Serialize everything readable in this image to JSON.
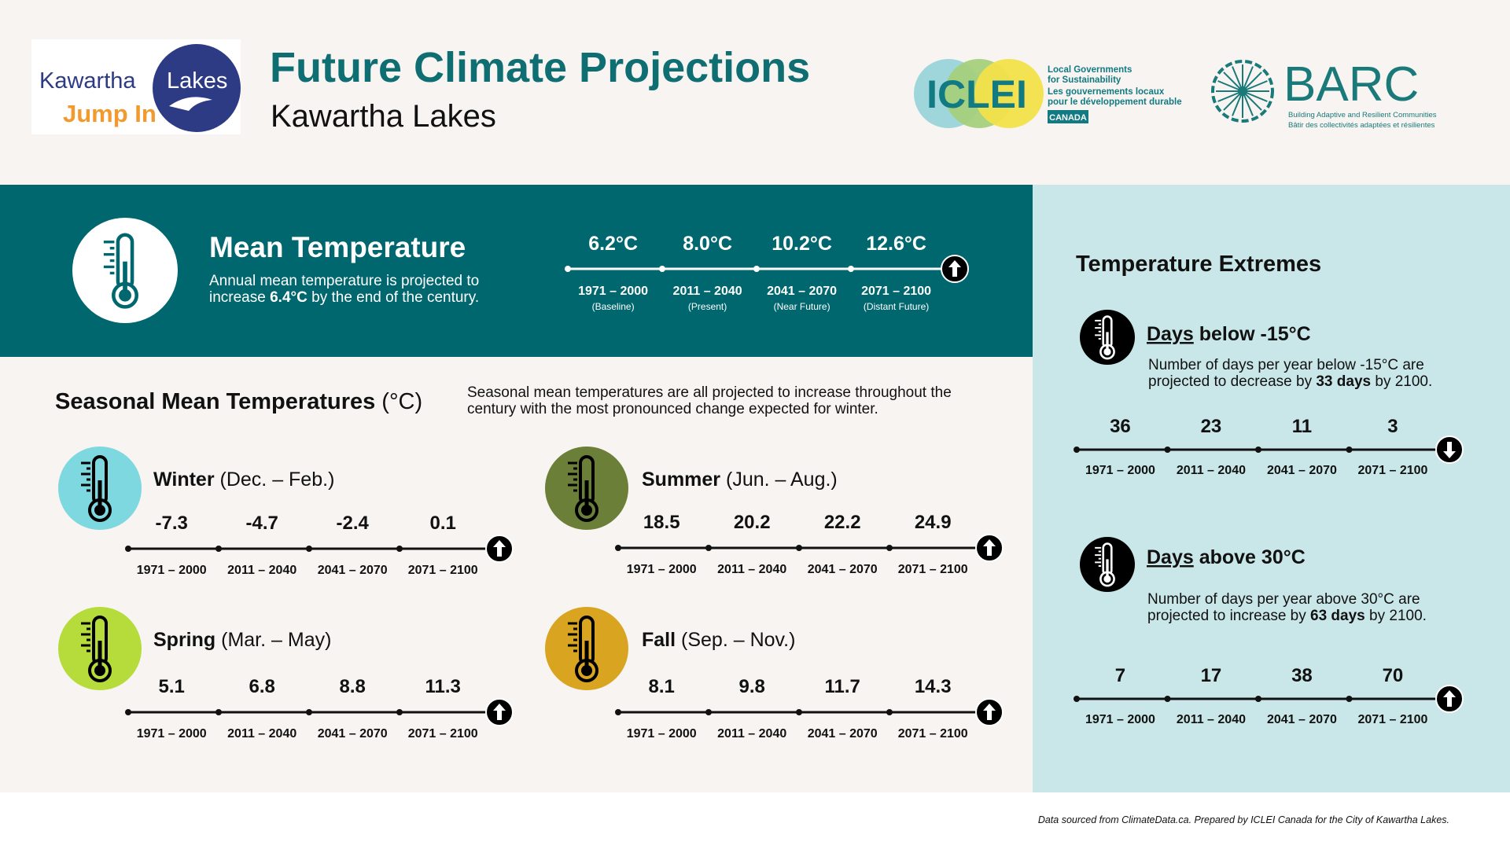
{
  "header": {
    "title": "Future Climate Projections",
    "subtitle": "Kawartha Lakes",
    "logo": {
      "word1": "Kawartha",
      "word2": "Lakes",
      "tagline": "Jump In"
    },
    "iclei": {
      "name": "ICLEI",
      "lines": [
        "Local Governments",
        "for Sustainability",
        "Les gouvernements locaux",
        "pour le développement durable"
      ],
      "country": "CANADA"
    },
    "barc": {
      "name": "BARC",
      "line_en": "Building Adaptive and Resilient Communities",
      "line_fr": "Bâtir des collectivités adaptées et résilientes"
    }
  },
  "periods": [
    "1971 – 2000",
    "2011 – 2040",
    "2041 – 2070",
    "2071 – 2100"
  ],
  "mean_temperature": {
    "title": "Mean Temperature",
    "description": [
      "Annual mean temperature is projected to increase ",
      "6.4°C",
      " by the end of the century."
    ],
    "values": [
      "6.2°C",
      "8.0°C",
      "10.2°C",
      "12.6°C"
    ],
    "notes": [
      "(Baseline)",
      "(Present)",
      "(Near Future)",
      "(Distant Future)"
    ]
  },
  "seasonal": {
    "title": "Seasonal Mean Temperatures",
    "unit": "(°C)",
    "description": "Seasonal mean temperatures are all projected to increase throughout the century with the most pronounced change expected for winter.",
    "seasons": [
      {
        "name": "Winter",
        "months": "(Dec. – Feb.)",
        "values": [
          -7.3,
          -4.7,
          -2.4,
          0.1
        ]
      },
      {
        "name": "Summer",
        "months": "(Jun. – Aug.)",
        "values": [
          18.5,
          20.2,
          22.2,
          24.9
        ]
      },
      {
        "name": "Spring",
        "months": "(Mar. – May)",
        "values": [
          5.1,
          6.8,
          8.8,
          11.3
        ]
      },
      {
        "name": "Fall",
        "months": "(Sep. – Nov.)",
        "values": [
          8.1,
          9.8,
          11.7,
          14.3
        ]
      }
    ]
  },
  "extremes": {
    "title": "Temperature Extremes",
    "items": [
      {
        "title": [
          "Days",
          " below -15°C"
        ],
        "description": [
          "Number of days per year below -15°C are projected to decrease by ",
          "33 days",
          " by 2100."
        ],
        "values": [
          36,
          23,
          11,
          3
        ]
      },
      {
        "title": [
          "Days",
          " above 30°C"
        ],
        "description": [
          "Number of days per year above 30°C are projected to increase by ",
          "63 days",
          " by 2100."
        ],
        "values": [
          7,
          17,
          38,
          70
        ]
      }
    ]
  },
  "footer": "Data sourced from ClimateData.ca. Prepared by ICLEI Canada for the City of Kawartha Lakes."
}
